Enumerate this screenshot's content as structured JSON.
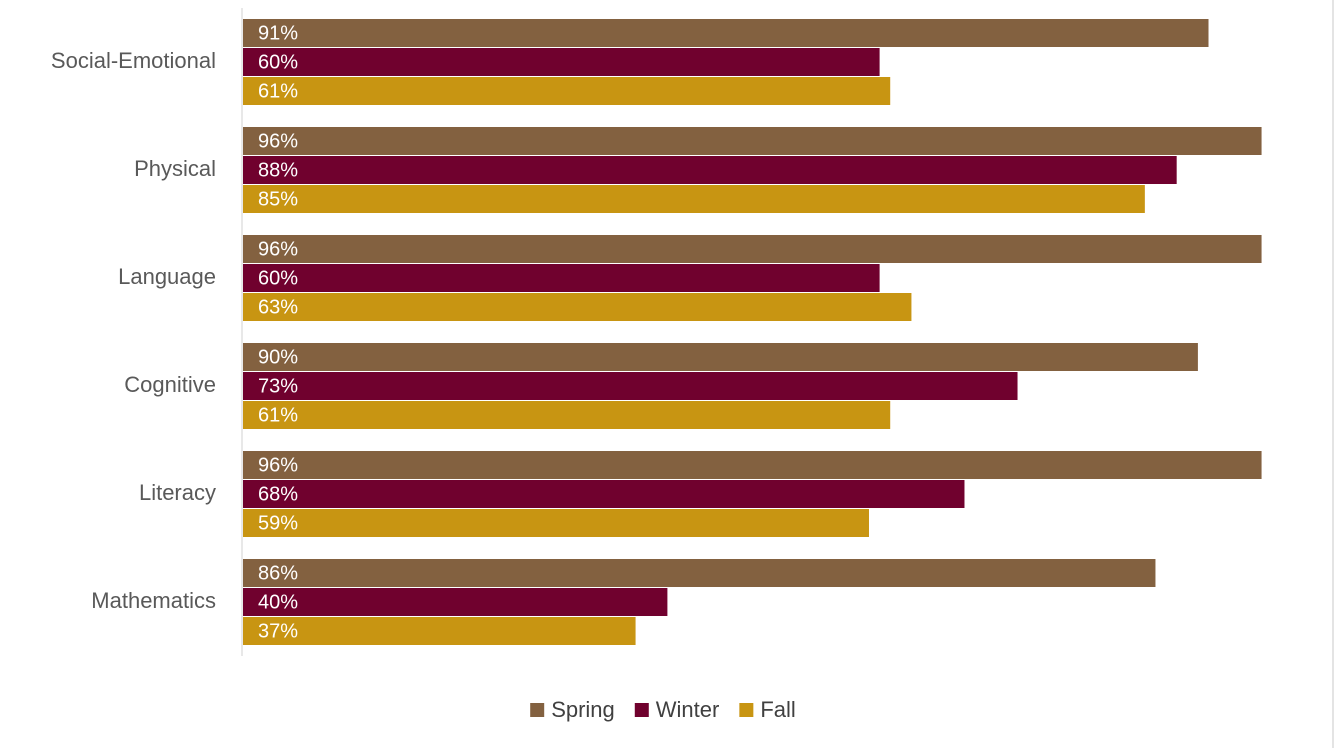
{
  "chart_data": {
    "type": "bar",
    "orientation": "horizontal",
    "categories": [
      "Social-Emotional",
      "Physical",
      "Language",
      "Cognitive",
      "Literacy",
      "Mathematics"
    ],
    "series": [
      {
        "name": "Spring",
        "color": "#836140",
        "values": [
          91,
          96,
          96,
          90,
          96,
          86
        ],
        "value_labels": [
          "91%",
          "96%",
          "96%",
          "90%",
          "96%",
          "86%"
        ]
      },
      {
        "name": "Winter",
        "color": "#70012e",
        "values": [
          60,
          88,
          60,
          73,
          68,
          40
        ],
        "value_labels": [
          "60%",
          "88%",
          "60%",
          "73%",
          "68%",
          "40%"
        ]
      },
      {
        "name": "Fall",
        "color": "#c89512",
        "values": [
          61,
          85,
          63,
          61,
          59,
          37
        ],
        "value_labels": [
          "61%",
          "85%",
          "63%",
          "61%",
          "59%",
          "37%"
        ]
      }
    ],
    "xlim": [
      0,
      100
    ],
    "legend": "bottom"
  }
}
